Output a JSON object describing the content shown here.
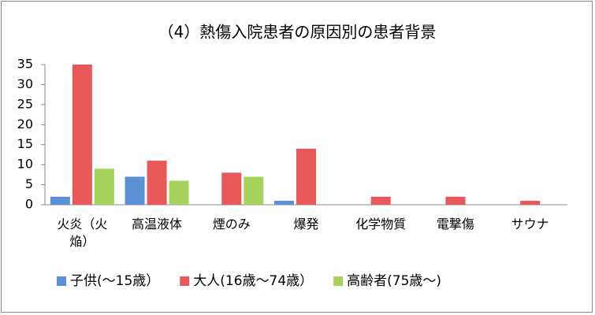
{
  "chart_data": {
    "type": "bar",
    "title": "（4）熱傷入院患者の原因別の患者背景",
    "categories": [
      "火炎（火焔）",
      "高温液体",
      "煙のみ",
      "爆発",
      "化学物質",
      "電撃傷",
      "サウナ"
    ],
    "series": [
      {
        "name": "子供(～15歳）",
        "color": "#5b8fd6",
        "values": [
          2,
          7,
          0,
          1,
          0,
          0,
          0
        ]
      },
      {
        "name": "大人(16歳～74歳）",
        "color": "#e8575a",
        "values": [
          35,
          11,
          8,
          14,
          2,
          2,
          1
        ]
      },
      {
        "name": "高齢者(75歳～)",
        "color": "#a6d35b",
        "values": [
          9,
          6,
          7,
          0,
          0,
          0,
          0
        ]
      }
    ],
    "ylim": [
      0,
      35
    ],
    "yticks": [
      0,
      5,
      10,
      15,
      20,
      25,
      30,
      35
    ],
    "grid": false,
    "legend": "bottom"
  }
}
